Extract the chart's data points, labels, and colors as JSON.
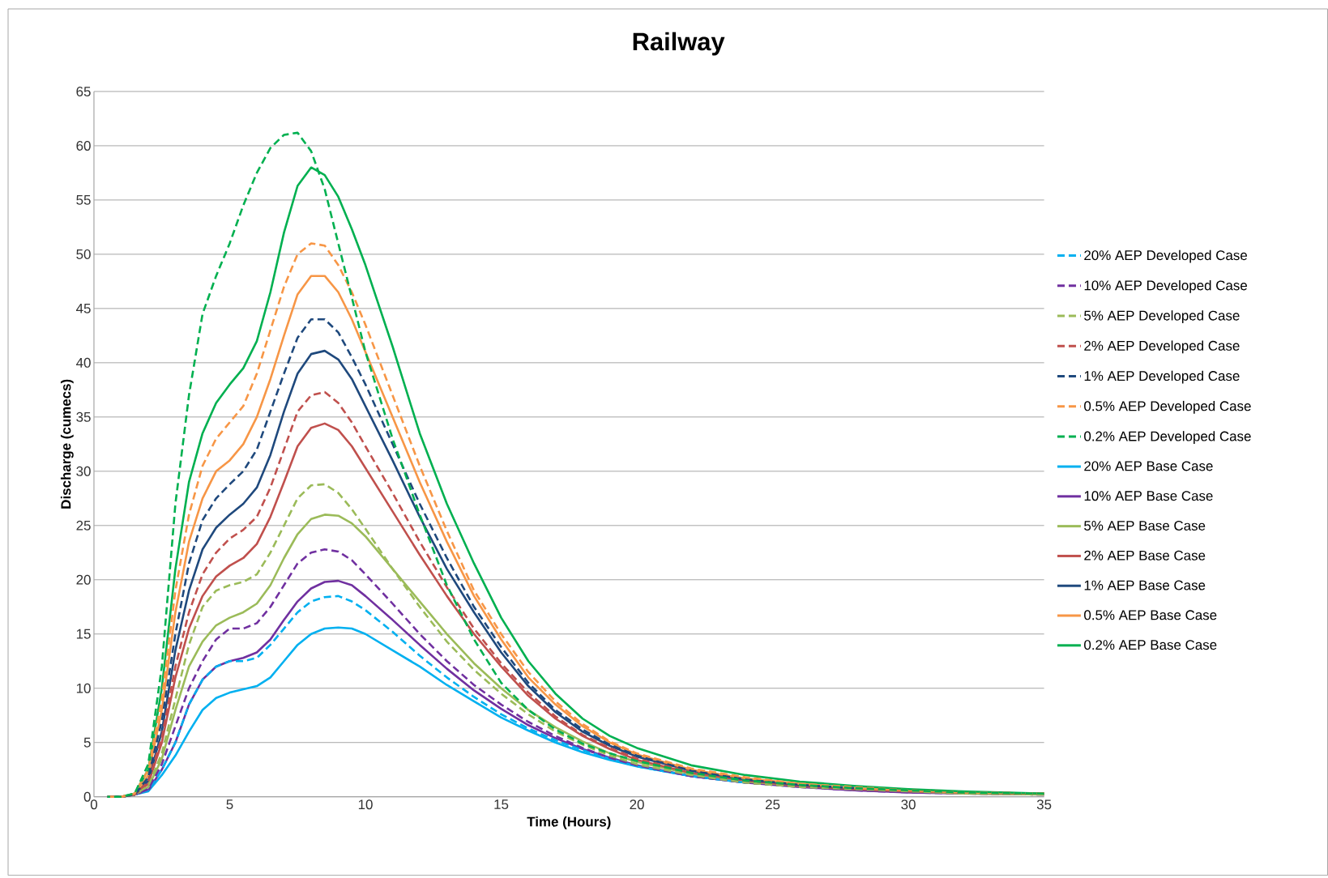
{
  "chart_data": {
    "type": "line",
    "title": "Railway",
    "xlabel": "Time (Hours)",
    "ylabel": "Discharge (cumecs)",
    "xlim": [
      0,
      35
    ],
    "xticks": [
      0,
      5,
      10,
      15,
      20,
      25,
      30,
      35
    ],
    "ylim": [
      0,
      65
    ],
    "yticks": [
      0,
      5,
      10,
      15,
      20,
      25,
      30,
      35,
      40,
      45,
      50,
      55,
      60,
      65
    ],
    "grid": "y",
    "legend": "right",
    "x": [
      0.5,
      1,
      1.5,
      2,
      2.5,
      3,
      3.5,
      4,
      4.5,
      5,
      5.5,
      6,
      6.5,
      7,
      7.5,
      8,
      8.5,
      9,
      9.5,
      10,
      11,
      12,
      13,
      14,
      15,
      16,
      17,
      18,
      19,
      20,
      22,
      24,
      26,
      28,
      30,
      32,
      35
    ],
    "series": [
      {
        "name": "20% AEP Developed Case",
        "color": "#00b0f0",
        "line_style": "dashed",
        "values": [
          0,
          0,
          0.2,
          0.6,
          2.5,
          5,
          8.5,
          10.8,
          12,
          12.5,
          12.5,
          12.8,
          14,
          15.5,
          17,
          18,
          18.4,
          18.5,
          18,
          17.2,
          15.2,
          13,
          11,
          9.2,
          7.6,
          6.3,
          5.2,
          4.3,
          3.5,
          2.8,
          1.9,
          1.3,
          null,
          null,
          null,
          null,
          null
        ]
      },
      {
        "name": "10% AEP Developed Case",
        "color": "#7030a0",
        "line_style": "dashed",
        "values": [
          0,
          0,
          0.2,
          0.7,
          3,
          6.5,
          10,
          12.5,
          14.5,
          15.5,
          15.5,
          16,
          17.5,
          19.5,
          21.5,
          22.5,
          22.8,
          22.6,
          21.8,
          20.5,
          17.8,
          15,
          12.5,
          10.3,
          8.5,
          6.9,
          5.6,
          4.5,
          3.6,
          2.9,
          1.9,
          1.3,
          0.9,
          0.6,
          0.4,
          0.3,
          0.2
        ]
      },
      {
        "name": "5% AEP Developed Case",
        "color": "#9bbb59",
        "line_style": "dashed",
        "values": [
          0,
          0,
          0.2,
          1,
          4,
          9,
          14,
          17.5,
          19,
          19.5,
          19.8,
          20.5,
          22.5,
          25,
          27.5,
          28.7,
          28.8,
          28,
          26.5,
          24.7,
          21,
          17.5,
          14.3,
          11.7,
          9.5,
          7.6,
          6,
          4.8,
          3.8,
          3,
          2,
          1.3,
          0.9,
          0.7,
          0.5,
          0.3,
          0.2
        ]
      },
      {
        "name": "2% AEP Developed Case",
        "color": "#c0504d",
        "line_style": "dashed",
        "values": [
          0,
          0,
          0.2,
          1.4,
          5.5,
          12,
          17,
          20.5,
          22.5,
          23.8,
          24.6,
          25.8,
          28.5,
          32,
          35.5,
          37,
          37.3,
          36.3,
          34.5,
          32.3,
          28,
          23.5,
          19.3,
          15.5,
          12.3,
          9.6,
          7.4,
          5.7,
          4.5,
          3.5,
          2.3,
          1.5,
          1.1,
          0.8,
          0.6,
          0.4,
          0.3
        ]
      },
      {
        "name": "1% AEP Developed Case",
        "color": "#1f497d",
        "line_style": "dashed",
        "values": [
          0,
          0,
          0.2,
          1.8,
          7,
          15,
          21.5,
          25.5,
          27.5,
          28.8,
          30,
          32,
          35.5,
          39,
          42.3,
          44,
          44,
          42.8,
          40.5,
          38,
          32.5,
          27,
          22,
          17.5,
          13.8,
          10.5,
          8,
          6.2,
          4.8,
          3.8,
          2.4,
          1.6,
          1.1,
          0.8,
          null,
          null,
          null
        ]
      },
      {
        "name": "0.5% AEP Developed Case",
        "color": "#f79646",
        "line_style": "dashed",
        "values": [
          0,
          0,
          0.3,
          2.5,
          9,
          19,
          26,
          30.5,
          33,
          34.5,
          36,
          39,
          43,
          47,
          50,
          51,
          50.8,
          49,
          46.5,
          43.5,
          37,
          30.5,
          24.5,
          19,
          15,
          11.5,
          8.8,
          6.7,
          5.1,
          4,
          2.6,
          1.8,
          1.2,
          0.9,
          0.6,
          0.4,
          0.3
        ]
      },
      {
        "name": "0.2% AEP Developed Case",
        "color": "#00b050",
        "line_style": "dashed",
        "values": [
          0,
          0,
          0.3,
          3,
          12,
          27,
          37,
          44.5,
          48,
          51,
          54.5,
          57.5,
          59.8,
          61,
          61.2,
          59.5,
          56,
          51,
          46,
          41,
          33,
          26,
          19.5,
          14.5,
          10.5,
          8,
          6.2,
          4.9,
          4,
          3.3,
          2.2,
          1.5,
          1.1,
          0.8,
          0.6,
          0.4,
          0.3
        ]
      },
      {
        "name": "20% AEP Base Case",
        "color": "#00b0f0",
        "line_style": "solid",
        "values": [
          0,
          0,
          0.2,
          0.5,
          2,
          3.8,
          6,
          8,
          9.1,
          9.6,
          9.9,
          10.2,
          11,
          12.5,
          14,
          15,
          15.5,
          15.6,
          15.5,
          15,
          13.5,
          12,
          10.3,
          8.8,
          7.3,
          6.1,
          5,
          4.1,
          3.4,
          2.8,
          1.9,
          1.3,
          null,
          null,
          null,
          null,
          null
        ]
      },
      {
        "name": "10% AEP Base Case",
        "color": "#7030a0",
        "line_style": "solid",
        "values": [
          0,
          0,
          0.2,
          0.6,
          2.5,
          5,
          8.5,
          10.8,
          12,
          12.5,
          12.8,
          13.3,
          14.5,
          16.3,
          18,
          19.2,
          19.8,
          19.9,
          19.5,
          18.5,
          16.3,
          14,
          11.8,
          9.8,
          8.1,
          6.6,
          5.4,
          4.4,
          3.6,
          2.9,
          1.9,
          1.3,
          0.9,
          0.6,
          0.4,
          0.3,
          0.2
        ]
      },
      {
        "name": "5% AEP Base Case",
        "color": "#9bbb59",
        "line_style": "solid",
        "values": [
          0,
          0,
          0.2,
          0.9,
          3.5,
          8,
          12,
          14.3,
          15.8,
          16.5,
          17,
          17.8,
          19.5,
          22,
          24.2,
          25.6,
          26,
          25.9,
          25.2,
          24,
          21,
          18,
          15,
          12.3,
          10,
          8,
          6.4,
          5.1,
          4,
          3.2,
          2.1,
          1.4,
          1,
          0.7,
          0.5,
          0.3,
          0.2
        ]
      },
      {
        "name": "2% AEP Base Case",
        "color": "#c0504d",
        "line_style": "solid",
        "values": [
          0,
          0,
          0.2,
          1.2,
          5,
          11,
          15.5,
          18.5,
          20.3,
          21.3,
          22,
          23.3,
          25.8,
          29,
          32.3,
          34,
          34.4,
          33.8,
          32.3,
          30.3,
          26.3,
          22.3,
          18.5,
          15,
          12,
          9.3,
          7.2,
          5.6,
          4.4,
          3.4,
          2.2,
          1.5,
          1,
          0.7,
          0.5,
          0.4,
          0.3
        ]
      },
      {
        "name": "1% AEP Base Case",
        "color": "#1f497d",
        "line_style": "solid",
        "values": [
          0,
          0,
          0.2,
          1.5,
          6,
          13.5,
          19,
          22.8,
          24.8,
          26,
          27,
          28.5,
          31.5,
          35.5,
          39,
          40.8,
          41.1,
          40.3,
          38.5,
          36,
          31,
          25.8,
          21,
          17,
          13.3,
          10.2,
          7.8,
          6,
          4.7,
          3.7,
          2.4,
          1.6,
          1.1,
          0.8,
          null,
          null,
          null
        ]
      },
      {
        "name": "0.5% AEP Base Case",
        "color": "#f79646",
        "line_style": "solid",
        "values": [
          0,
          0,
          0.2,
          2,
          8,
          17,
          23.5,
          27.5,
          30,
          31,
          32.5,
          35,
          38.5,
          42.5,
          46.3,
          48,
          48,
          46.5,
          44,
          41,
          35,
          29,
          23.5,
          18.5,
          14.5,
          11,
          8.5,
          6.5,
          5,
          3.9,
          2.5,
          1.7,
          1.2,
          0.8,
          0.6,
          0.4,
          0.3
        ]
      },
      {
        "name": "0.2% AEP Base Case",
        "color": "#00b050",
        "line_style": "solid",
        "values": [
          0,
          0,
          0.3,
          2.5,
          10,
          21,
          29,
          33.5,
          36.3,
          38,
          39.5,
          42,
          46.5,
          52,
          56.3,
          58,
          57.3,
          55.3,
          52.3,
          49,
          41.5,
          33.5,
          27,
          21.5,
          16.5,
          12.5,
          9.5,
          7.2,
          5.6,
          4.5,
          2.9,
          2,
          1.4,
          1,
          0.7,
          0.5,
          0.3
        ]
      }
    ]
  }
}
